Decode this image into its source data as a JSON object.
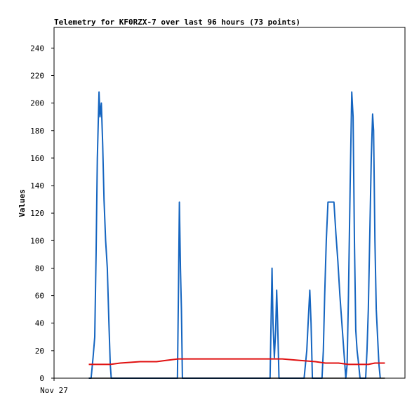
{
  "chart_data": {
    "type": "line",
    "title": "Telemetry for KF0RZX-7 over last 96 hours (73 points)",
    "xlabel": "",
    "ylabel": "Values",
    "x_tick_labels": [
      "Nov 27"
    ],
    "ylim": [
      0,
      255
    ],
    "yticks": [
      0,
      20,
      40,
      60,
      80,
      100,
      120,
      140,
      160,
      180,
      200,
      220,
      240
    ],
    "xlim": [
      0,
      96
    ],
    "grid": false,
    "legend": "none",
    "series": [
      {
        "color": "#1565c0",
        "points": [
          [
            10.5,
            0
          ],
          [
            11.2,
            0
          ],
          [
            11.8,
            15
          ],
          [
            12.3,
            30
          ],
          [
            12.7,
            90
          ],
          [
            13.1,
            160
          ],
          [
            13.6,
            208
          ],
          [
            13.9,
            190
          ],
          [
            14.3,
            200
          ],
          [
            14.7,
            170
          ],
          [
            15.1,
            130
          ],
          [
            15.6,
            100
          ],
          [
            16.1,
            80
          ],
          [
            16.6,
            40
          ],
          [
            17.0,
            10
          ],
          [
            17.3,
            0
          ],
          [
            37.3,
            0
          ],
          [
            37.6,
            60
          ],
          [
            37.9,
            128
          ],
          [
            38.2,
            80
          ],
          [
            38.5,
            50
          ],
          [
            38.8,
            0
          ],
          [
            65.3,
            0
          ],
          [
            65.6,
            40
          ],
          [
            65.9,
            80
          ],
          [
            66.2,
            40
          ],
          [
            66.6,
            15
          ],
          [
            67.0,
            35
          ],
          [
            67.3,
            64
          ],
          [
            67.6,
            40
          ],
          [
            68.0,
            0
          ],
          [
            75.6,
            0
          ],
          [
            76.0,
            10
          ],
          [
            76.4,
            20
          ],
          [
            76.9,
            45
          ],
          [
            77.3,
            64
          ],
          [
            77.7,
            40
          ],
          [
            78.1,
            0
          ],
          [
            81.0,
            0
          ],
          [
            81.4,
            20
          ],
          [
            81.8,
            60
          ],
          [
            82.3,
            100
          ],
          [
            82.8,
            128
          ],
          [
            84.6,
            128
          ],
          [
            85.2,
            105
          ],
          [
            85.8,
            85
          ],
          [
            86.4,
            60
          ],
          [
            87.0,
            40
          ],
          [
            87.6,
            20
          ],
          [
            88.2,
            0
          ],
          [
            88.6,
            10
          ],
          [
            89.0,
            60
          ],
          [
            89.5,
            140
          ],
          [
            90.0,
            208
          ],
          [
            90.4,
            190
          ],
          [
            90.8,
            100
          ],
          [
            91.2,
            35
          ],
          [
            91.6,
            20
          ],
          [
            92.0,
            12
          ],
          [
            92.5,
            0
          ],
          [
            94.2,
            0
          ],
          [
            94.6,
            20
          ],
          [
            95.0,
            50
          ],
          [
            95.5,
            110
          ],
          [
            95.9,
            160
          ],
          [
            96.3,
            192
          ],
          [
            96.6,
            180
          ],
          [
            97.0,
            100
          ],
          [
            97.4,
            50
          ],
          [
            97.8,
            30
          ],
          [
            98.2,
            10
          ],
          [
            98.6,
            0
          ]
        ]
      },
      {
        "color": "#e01010",
        "points": [
          [
            10.5,
            10
          ],
          [
            17.0,
            10
          ],
          [
            20.0,
            11
          ],
          [
            26.0,
            12
          ],
          [
            31.0,
            12
          ],
          [
            34.0,
            13
          ],
          [
            37.5,
            14
          ],
          [
            50.0,
            14
          ],
          [
            62.0,
            14
          ],
          [
            69.0,
            14
          ],
          [
            74.0,
            13
          ],
          [
            79.0,
            12
          ],
          [
            82.0,
            11
          ],
          [
            86.0,
            11
          ],
          [
            89.0,
            10
          ],
          [
            93.0,
            10
          ],
          [
            95.0,
            10
          ],
          [
            97.0,
            11
          ],
          [
            100.0,
            11
          ]
        ]
      },
      {
        "color": "#000000",
        "points": [
          [
            10.5,
            0
          ],
          [
            100.0,
            0
          ]
        ]
      }
    ]
  }
}
